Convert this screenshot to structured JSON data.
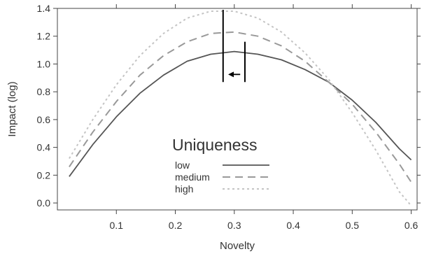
{
  "chart_data": {
    "type": "line",
    "title": "",
    "xlabel": "Novelty",
    "ylabel": "Impact (log)",
    "xlim": [
      0.0,
      0.61
    ],
    "ylim": [
      -0.05,
      1.4
    ],
    "x_ticks": [
      0.1,
      0.2,
      0.3,
      0.4,
      0.5,
      0.6
    ],
    "x_tick_labels": [
      "0.1",
      "0.2",
      "0.3",
      "0.4",
      "0.5",
      "0.6"
    ],
    "y_ticks": [
      0.0,
      0.2,
      0.4,
      0.6,
      0.8,
      1.0,
      1.2,
      1.4
    ],
    "y_tick_labels": [
      "0.0",
      "0.2",
      "0.4",
      "0.6",
      "0.8",
      "1.0",
      "1.2",
      "1.4"
    ],
    "grid": false,
    "legend": {
      "title": "Uniqueness",
      "placement": "bottom-center"
    },
    "series": [
      {
        "name": "low",
        "color": "#555555",
        "dash": "solid",
        "x": [
          0.02,
          0.06,
          0.1,
          0.14,
          0.18,
          0.22,
          0.26,
          0.3,
          0.34,
          0.38,
          0.42,
          0.46,
          0.5,
          0.54,
          0.58,
          0.6
        ],
        "y": [
          0.19,
          0.42,
          0.62,
          0.79,
          0.92,
          1.02,
          1.07,
          1.09,
          1.07,
          1.03,
          0.96,
          0.87,
          0.74,
          0.58,
          0.39,
          0.31
        ]
      },
      {
        "name": "medium",
        "color": "#999999",
        "dash": "dashed",
        "x": [
          0.02,
          0.06,
          0.1,
          0.14,
          0.18,
          0.22,
          0.26,
          0.3,
          0.34,
          0.38,
          0.42,
          0.46,
          0.5,
          0.54,
          0.58,
          0.6
        ],
        "y": [
          0.26,
          0.51,
          0.73,
          0.92,
          1.06,
          1.16,
          1.22,
          1.23,
          1.2,
          1.13,
          1.02,
          0.87,
          0.71,
          0.51,
          0.28,
          0.15
        ]
      },
      {
        "name": "high",
        "color": "#c4c4c4",
        "dash": "dotted",
        "x": [
          0.02,
          0.06,
          0.1,
          0.14,
          0.18,
          0.22,
          0.26,
          0.3,
          0.34,
          0.38,
          0.42,
          0.46,
          0.5,
          0.54,
          0.58,
          0.6
        ],
        "y": [
          0.32,
          0.6,
          0.85,
          1.06,
          1.22,
          1.33,
          1.38,
          1.38,
          1.33,
          1.23,
          1.08,
          0.89,
          0.65,
          0.38,
          0.08,
          -0.02
        ]
      }
    ],
    "annotations": [
      {
        "type": "vline",
        "x": 0.281,
        "y_from": 0.87,
        "y_to": 1.39,
        "color": "#000000"
      },
      {
        "type": "vline",
        "x": 0.318,
        "y_from": 0.87,
        "y_to": 1.16,
        "color": "#000000"
      },
      {
        "type": "arrow",
        "x_from": 0.31,
        "x_to": 0.292,
        "y": 0.925,
        "color": "#000000"
      }
    ]
  }
}
